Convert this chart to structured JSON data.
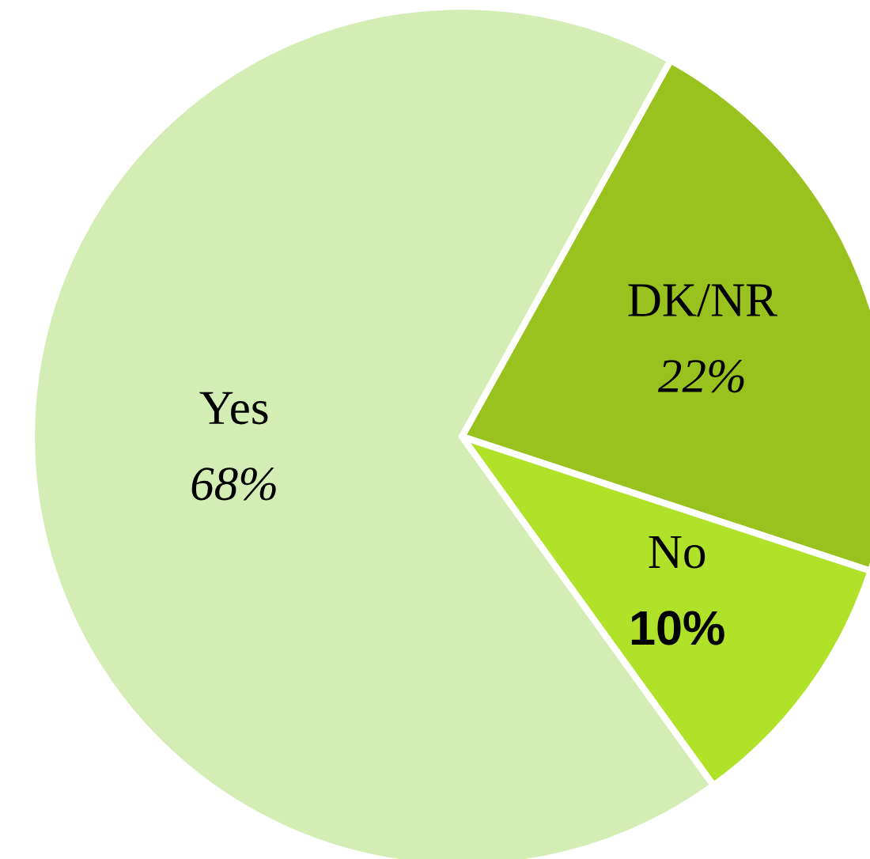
{
  "chart_data": {
    "type": "pie",
    "categories": [
      "DK/NR",
      "No",
      "Yes"
    ],
    "values": [
      22,
      10,
      68
    ],
    "colors": [
      "#99c21f",
      "#b0e22a",
      "#d4edb4"
    ],
    "value_labels": [
      "22%",
      "10%",
      "68%"
    ]
  }
}
